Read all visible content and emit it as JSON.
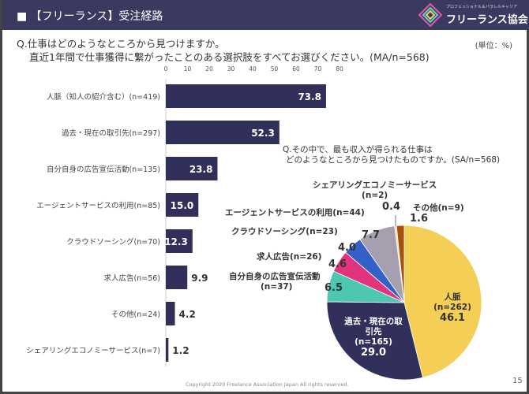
{
  "header": {
    "title": "■ 【フリーランス】受注経路",
    "logo_sub": "プロフェッショナル＆パラレルキャリア",
    "logo_main": "フリーランス協会"
  },
  "unit": "(単位：%)",
  "footer": {
    "copyright": "Copyright 2020 Freelance Association Japan  All rights reserved.",
    "page": "15"
  },
  "chart_data": [
    {
      "type": "bar",
      "orientation": "horizontal",
      "title": "Q.仕事はどのようなところから見つけますか。",
      "subtitle": "直近1年間で仕事獲得に繋がったことのある選択肢をすべてお選びください。(MA/n=568)",
      "categories": [
        "人脈（知人の紹介含む）(n=419)",
        "過去・現在の取引先(n=297)",
        "自分自身の広告宣伝活動(n=135)",
        "エージェントサービスの利用(n=85)",
        "クラウドソーシング(n=70)",
        "求人広告(n=56)",
        "その他(n=24)",
        "シェアリングエコノミーサービス(n=7)"
      ],
      "values": [
        73.8,
        52.3,
        23.8,
        15.0,
        12.3,
        9.9,
        4.2,
        1.2
      ],
      "xlim": [
        0,
        80
      ],
      "ticks": [
        0,
        10,
        20,
        30,
        40,
        50,
        60,
        70,
        80
      ],
      "color": "#31305a"
    },
    {
      "type": "pie",
      "title": "Q.その中で、最も収入が得られる仕事は",
      "subtitle": "どのようなところから見つけたものですか。(SA/n=568)",
      "slices": [
        {
          "label": "人脈",
          "n": "(n=262)",
          "value": 46.1,
          "color": "#f5cf55"
        },
        {
          "label": "過去・現在の取引先",
          "n": "(n=165)",
          "value": 29.0,
          "color": "#31305a"
        },
        {
          "label": "自分自身の広告宣伝活動",
          "n": "(n=37)",
          "value": 6.5,
          "color": "#4cc7b0"
        },
        {
          "label": "求人広告",
          "n": "(n=26)",
          "value": 4.6,
          "color": "#e0347f"
        },
        {
          "label": "クラウドソーシング",
          "n": "(n=23)",
          "value": 4.0,
          "color": "#3560c8"
        },
        {
          "label": "エージェントサービスの利用",
          "n": "(n=44)",
          "value": 7.7,
          "color": "#a69fb0"
        },
        {
          "label": "シェアリングエコノミーサービス",
          "n": "(n=2)",
          "value": 0.4,
          "color": "#f0e0a0"
        },
        {
          "label": "その他",
          "n": "(n=9)",
          "value": 1.6,
          "color": "#a8500f"
        }
      ]
    }
  ]
}
